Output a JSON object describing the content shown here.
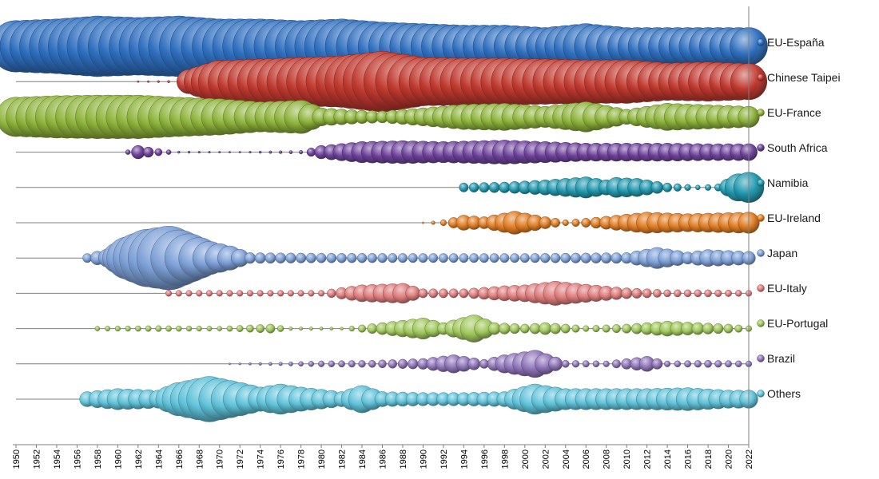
{
  "chart_data": {
    "type": "bubble-timeline",
    "title": "",
    "xlabel": "",
    "ylabel": "",
    "xlim": [
      1950,
      2022
    ],
    "x_ticks": [
      1950,
      1952,
      1954,
      1956,
      1958,
      1960,
      1962,
      1964,
      1966,
      1968,
      1970,
      1972,
      1974,
      1976,
      1978,
      1980,
      1982,
      1984,
      1986,
      1988,
      1990,
      1992,
      1994,
      1996,
      1998,
      2000,
      2002,
      2004,
      2006,
      2008,
      2010,
      2012,
      2014,
      2016,
      2018,
      2020,
      2022
    ],
    "legend_position": "right",
    "grid": false,
    "series": [
      {
        "name": "EU-España",
        "color": "#2f6fbf",
        "start": 1950,
        "end": 2022,
        "anchors": [
          [
            1950,
            0.85
          ],
          [
            1954,
            0.9
          ],
          [
            1958,
            1.0
          ],
          [
            1962,
            0.95
          ],
          [
            1966,
            1.0
          ],
          [
            1970,
            0.9
          ],
          [
            1974,
            0.9
          ],
          [
            1978,
            0.85
          ],
          [
            1982,
            0.9
          ],
          [
            1986,
            0.8
          ],
          [
            1990,
            0.75
          ],
          [
            1994,
            0.7
          ],
          [
            1998,
            0.7
          ],
          [
            2002,
            0.62
          ],
          [
            2006,
            0.75
          ],
          [
            2010,
            0.62
          ],
          [
            2014,
            0.62
          ],
          [
            2018,
            0.62
          ],
          [
            2022,
            0.62
          ]
        ]
      },
      {
        "name": "Chinese Taipei",
        "color": "#c0392f",
        "start": 1962,
        "end": 2022,
        "anchors": [
          [
            1962,
            0.03
          ],
          [
            1965,
            0.04
          ],
          [
            1966,
            0.06
          ],
          [
            1967,
            0.4
          ],
          [
            1970,
            0.7
          ],
          [
            1974,
            0.75
          ],
          [
            1978,
            0.8
          ],
          [
            1982,
            0.85
          ],
          [
            1986,
            1.0
          ],
          [
            1990,
            0.8
          ],
          [
            1994,
            0.78
          ],
          [
            1998,
            0.78
          ],
          [
            2002,
            0.75
          ],
          [
            2006,
            0.72
          ],
          [
            2010,
            0.72
          ],
          [
            2014,
            0.62
          ],
          [
            2018,
            0.65
          ],
          [
            2022,
            0.6
          ]
        ]
      },
      {
        "name": "EU-France",
        "color": "#8db33a",
        "start": 1950,
        "end": 2022,
        "anchors": [
          [
            1950,
            0.65
          ],
          [
            1954,
            0.7
          ],
          [
            1958,
            0.72
          ],
          [
            1962,
            0.72
          ],
          [
            1966,
            0.65
          ],
          [
            1970,
            0.6
          ],
          [
            1974,
            0.5
          ],
          [
            1978,
            0.55
          ],
          [
            1980,
            0.3
          ],
          [
            1984,
            0.22
          ],
          [
            1986,
            0.2
          ],
          [
            1990,
            0.3
          ],
          [
            1994,
            0.42
          ],
          [
            1998,
            0.45
          ],
          [
            2002,
            0.35
          ],
          [
            2006,
            0.5
          ],
          [
            2010,
            0.25
          ],
          [
            2014,
            0.45
          ],
          [
            2018,
            0.4
          ],
          [
            2022,
            0.35
          ]
        ]
      },
      {
        "name": "South Africa",
        "color": "#6b3f99",
        "start": 1961,
        "end": 2022,
        "anchors": [
          [
            1961,
            0.08
          ],
          [
            1962,
            0.22
          ],
          [
            1964,
            0.12
          ],
          [
            1966,
            0.04
          ],
          [
            1972,
            0.03
          ],
          [
            1978,
            0.06
          ],
          [
            1980,
            0.22
          ],
          [
            1984,
            0.35
          ],
          [
            1988,
            0.38
          ],
          [
            1992,
            0.35
          ],
          [
            1998,
            0.4
          ],
          [
            2002,
            0.35
          ],
          [
            2006,
            0.3
          ],
          [
            2010,
            0.3
          ],
          [
            2014,
            0.3
          ],
          [
            2018,
            0.28
          ],
          [
            2022,
            0.28
          ]
        ]
      },
      {
        "name": "Namibia",
        "color": "#1f97ad",
        "start": 1994,
        "end": 2022,
        "anchors": [
          [
            1994,
            0.15
          ],
          [
            1998,
            0.18
          ],
          [
            2002,
            0.25
          ],
          [
            2006,
            0.35
          ],
          [
            2008,
            0.25
          ],
          [
            2009,
            0.33
          ],
          [
            2011,
            0.3
          ],
          [
            2014,
            0.15
          ],
          [
            2017,
            0.08
          ],
          [
            2019,
            0.12
          ],
          [
            2021,
            0.45
          ],
          [
            2022,
            0.5
          ]
        ]
      },
      {
        "name": "EU-Ireland",
        "color": "#e07c22",
        "start": 1990,
        "end": 2022,
        "anchors": [
          [
            1990,
            0.02
          ],
          [
            1992,
            0.1
          ],
          [
            1994,
            0.25
          ],
          [
            1996,
            0.2
          ],
          [
            1999,
            0.38
          ],
          [
            2002,
            0.2
          ],
          [
            2004,
            0.1
          ],
          [
            2006,
            0.15
          ],
          [
            2009,
            0.25
          ],
          [
            2012,
            0.35
          ],
          [
            2016,
            0.3
          ],
          [
            2022,
            0.35
          ]
        ]
      },
      {
        "name": "Japan",
        "color": "#7c9fd6",
        "start": 1957,
        "end": 2022,
        "anchors": [
          [
            1957,
            0.15
          ],
          [
            1959,
            0.3
          ],
          [
            1961,
            0.7
          ],
          [
            1963,
            0.95
          ],
          [
            1965,
            1.05
          ],
          [
            1967,
            0.8
          ],
          [
            1969,
            0.55
          ],
          [
            1971,
            0.4
          ],
          [
            1973,
            0.18
          ],
          [
            1980,
            0.16
          ],
          [
            1990,
            0.15
          ],
          [
            2000,
            0.15
          ],
          [
            2010,
            0.18
          ],
          [
            2013,
            0.35
          ],
          [
            2016,
            0.2
          ],
          [
            2018,
            0.28
          ],
          [
            2022,
            0.22
          ]
        ]
      },
      {
        "name": "EU-Italy",
        "color": "#de7b7b",
        "start": 1965,
        "end": 2022,
        "anchors": [
          [
            1965,
            0.1
          ],
          [
            1980,
            0.1
          ],
          [
            1984,
            0.28
          ],
          [
            1988,
            0.33
          ],
          [
            1990,
            0.15
          ],
          [
            1994,
            0.15
          ],
          [
            1998,
            0.25
          ],
          [
            2000,
            0.28
          ],
          [
            2003,
            0.4
          ],
          [
            2006,
            0.3
          ],
          [
            2010,
            0.18
          ],
          [
            2014,
            0.12
          ],
          [
            2018,
            0.12
          ],
          [
            2022,
            0.1
          ]
        ]
      },
      {
        "name": "EU-Portugal",
        "color": "#9fc75a",
        "start": 1958,
        "end": 2022,
        "anchors": [
          [
            1958,
            0.08
          ],
          [
            1964,
            0.1
          ],
          [
            1970,
            0.08
          ],
          [
            1975,
            0.15
          ],
          [
            1977,
            0.06
          ],
          [
            1982,
            0.05
          ],
          [
            1986,
            0.2
          ],
          [
            1990,
            0.35
          ],
          [
            1992,
            0.2
          ],
          [
            1995,
            0.45
          ],
          [
            1997,
            0.2
          ],
          [
            2000,
            0.15
          ],
          [
            2002,
            0.2
          ],
          [
            2006,
            0.1
          ],
          [
            2010,
            0.15
          ],
          [
            2014,
            0.25
          ],
          [
            2017,
            0.2
          ],
          [
            2020,
            0.15
          ],
          [
            2022,
            0.1
          ]
        ]
      },
      {
        "name": "Brazil",
        "color": "#8e73b8",
        "start": 1971,
        "end": 2022,
        "anchors": [
          [
            1971,
            0.03
          ],
          [
            1976,
            0.06
          ],
          [
            1980,
            0.1
          ],
          [
            1985,
            0.12
          ],
          [
            1990,
            0.18
          ],
          [
            1993,
            0.3
          ],
          [
            1996,
            0.15
          ],
          [
            1998,
            0.3
          ],
          [
            2001,
            0.45
          ],
          [
            2004,
            0.12
          ],
          [
            2008,
            0.1
          ],
          [
            2012,
            0.25
          ],
          [
            2014,
            0.1
          ],
          [
            2018,
            0.12
          ],
          [
            2022,
            0.1
          ]
        ]
      },
      {
        "name": "Others",
        "color": "#5fc2d9",
        "start": 1957,
        "end": 2022,
        "anchors": [
          [
            1957,
            0.25
          ],
          [
            1960,
            0.35
          ],
          [
            1964,
            0.3
          ],
          [
            1966,
            0.55
          ],
          [
            1969,
            0.75
          ],
          [
            1972,
            0.55
          ],
          [
            1974,
            0.4
          ],
          [
            1976,
            0.5
          ],
          [
            1978,
            0.4
          ],
          [
            1982,
            0.25
          ],
          [
            1984,
            0.45
          ],
          [
            1986,
            0.25
          ],
          [
            1990,
            0.22
          ],
          [
            1994,
            0.22
          ],
          [
            1998,
            0.25
          ],
          [
            2001,
            0.5
          ],
          [
            2004,
            0.35
          ],
          [
            2008,
            0.35
          ],
          [
            2012,
            0.35
          ],
          [
            2016,
            0.38
          ],
          [
            2020,
            0.3
          ],
          [
            2022,
            0.3
          ]
        ]
      }
    ]
  }
}
